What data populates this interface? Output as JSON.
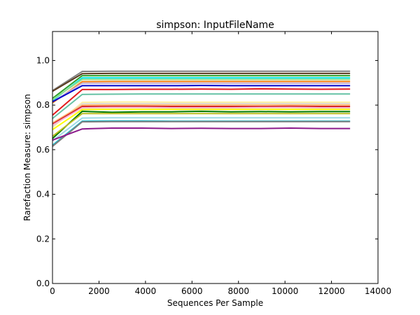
{
  "chart_data": {
    "type": "line",
    "title": "simpson: InputFileName",
    "xlabel": "Sequences Per Sample",
    "ylabel": "Rarefaction Measure: simpson",
    "xlim": [
      0,
      14000
    ],
    "ylim": [
      0,
      1.13
    ],
    "xticks": [
      0,
      2000,
      4000,
      6000,
      8000,
      10000,
      12000,
      14000
    ],
    "yticks": [
      0.0,
      0.2,
      0.4,
      0.6,
      0.8,
      1.0
    ],
    "xtick_labels": [
      "0",
      "2000",
      "4000",
      "6000",
      "8000",
      "10000",
      "12000",
      "14000"
    ],
    "ytick_labels": [
      "0.0",
      "0.2",
      "0.4",
      "0.6",
      "0.8",
      "1.0"
    ],
    "grid": false,
    "legend": "none",
    "x": [
      0,
      1280,
      2560,
      3840,
      5120,
      6400,
      7680,
      8960,
      10240,
      11520,
      12800
    ],
    "series": [
      {
        "color": "#7f7f7f",
        "values": [
          0.865,
          0.951,
          0.952,
          0.952,
          0.952,
          0.952,
          0.952,
          0.952,
          0.952,
          0.952,
          0.952
        ]
      },
      {
        "color": "#5a3b1e",
        "values": [
          0.862,
          0.941,
          0.942,
          0.942,
          0.942,
          0.942,
          0.942,
          0.942,
          0.942,
          0.942,
          0.942
        ]
      },
      {
        "color": "#2ca02c",
        "values": [
          0.83,
          0.932,
          0.932,
          0.932,
          0.932,
          0.932,
          0.932,
          0.932,
          0.932,
          0.932,
          0.932
        ]
      },
      {
        "color": "#00e5e5",
        "values": [
          0.82,
          0.922,
          0.922,
          0.922,
          0.922,
          0.922,
          0.922,
          0.922,
          0.922,
          0.922,
          0.922
        ]
      },
      {
        "color": "#98df8a",
        "values": [
          0.825,
          0.915,
          0.915,
          0.915,
          0.915,
          0.915,
          0.915,
          0.915,
          0.915,
          0.915,
          0.915
        ]
      },
      {
        "color": "#ff7f0e",
        "values": [
          0.81,
          0.905,
          0.906,
          0.906,
          0.906,
          0.906,
          0.906,
          0.906,
          0.906,
          0.906,
          0.906
        ]
      },
      {
        "color": "#c5b0d5",
        "values": [
          0.815,
          0.898,
          0.898,
          0.898,
          0.898,
          0.898,
          0.898,
          0.898,
          0.898,
          0.898,
          0.898
        ]
      },
      {
        "color": "#0000cc",
        "values": [
          0.815,
          0.887,
          0.887,
          0.887,
          0.887,
          0.888,
          0.887,
          0.887,
          0.887,
          0.887,
          0.887
        ]
      },
      {
        "color": "#e31a1c",
        "values": [
          0.755,
          0.87,
          0.87,
          0.871,
          0.871,
          0.872,
          0.871,
          0.873,
          0.872,
          0.871,
          0.872
        ]
      },
      {
        "color": "#66c2a5",
        "values": [
          0.74,
          0.848,
          0.849,
          0.85,
          0.85,
          0.85,
          0.85,
          0.85,
          0.85,
          0.85,
          0.85
        ]
      },
      {
        "color": "#fff3a0",
        "values": [
          0.7,
          0.812,
          0.814,
          0.814,
          0.813,
          0.813,
          0.813,
          0.813,
          0.813,
          0.813,
          0.813
        ]
      },
      {
        "color": "#dddddd",
        "values": [
          0.705,
          0.806,
          0.807,
          0.807,
          0.807,
          0.807,
          0.807,
          0.807,
          0.807,
          0.807,
          0.807
        ]
      },
      {
        "color": "#ffbb78",
        "values": [
          0.72,
          0.8,
          0.801,
          0.801,
          0.801,
          0.801,
          0.801,
          0.801,
          0.801,
          0.801,
          0.801
        ]
      },
      {
        "color": "#d62728",
        "values": [
          0.715,
          0.794,
          0.795,
          0.795,
          0.794,
          0.794,
          0.794,
          0.794,
          0.795,
          0.794,
          0.794
        ]
      },
      {
        "color": "#f7b6d2",
        "values": [
          0.71,
          0.788,
          0.789,
          0.789,
          0.788,
          0.788,
          0.788,
          0.789,
          0.789,
          0.788,
          0.788
        ]
      },
      {
        "color": "#ffff00",
        "values": [
          0.69,
          0.78,
          0.781,
          0.781,
          0.781,
          0.781,
          0.781,
          0.781,
          0.781,
          0.781,
          0.781
        ]
      },
      {
        "color": "#007a00",
        "values": [
          0.65,
          0.772,
          0.768,
          0.77,
          0.77,
          0.772,
          0.77,
          0.771,
          0.77,
          0.771,
          0.771
        ]
      },
      {
        "color": "#bcbd22",
        "values": [
          0.66,
          0.762,
          0.762,
          0.762,
          0.762,
          0.762,
          0.762,
          0.762,
          0.762,
          0.762,
          0.762
        ]
      },
      {
        "color": "#9edae5",
        "values": [
          0.64,
          0.742,
          0.743,
          0.743,
          0.743,
          0.743,
          0.743,
          0.743,
          0.743,
          0.743,
          0.743
        ]
      },
      {
        "color": "#17becf",
        "values": [
          0.62,
          0.728,
          0.729,
          0.729,
          0.728,
          0.728,
          0.728,
          0.728,
          0.728,
          0.728,
          0.728
        ]
      },
      {
        "color": "#7f7f7f",
        "values": [
          0.615,
          0.725,
          0.726,
          0.726,
          0.726,
          0.726,
          0.726,
          0.726,
          0.726,
          0.726,
          0.726
        ]
      },
      {
        "color": "#8c1a8c",
        "values": [
          0.643,
          0.693,
          0.697,
          0.697,
          0.695,
          0.696,
          0.695,
          0.695,
          0.697,
          0.695,
          0.695
        ]
      }
    ]
  }
}
